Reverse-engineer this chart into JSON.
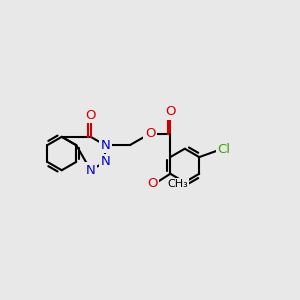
{
  "bg": "#e8e8e8",
  "bond_color": "#000000",
  "N_color": "#0000cc",
  "O_color": "#cc0000",
  "Cl_color": "#33aa00",
  "lw": 1.5,
  "fs": 9.5,
  "xlim": [
    -4.0,
    4.5
  ],
  "ylim": [
    -2.5,
    2.8
  ]
}
